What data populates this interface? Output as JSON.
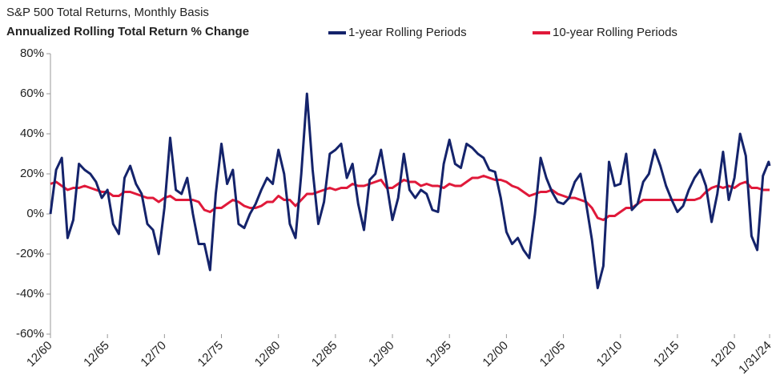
{
  "chart_data": {
    "type": "line",
    "title": "S&P 500 Total Returns, Monthly Basis",
    "subtitle": "Annualized Rolling Total Return % Change",
    "x": [
      "12/60",
      "6/61",
      "12/61",
      "6/62",
      "12/62",
      "6/63",
      "12/63",
      "6/64",
      "12/64",
      "6/65",
      "12/65",
      "6/66",
      "12/66",
      "6/67",
      "12/67",
      "6/68",
      "12/68",
      "6/69",
      "12/69",
      "6/70",
      "12/70",
      "6/71",
      "12/71",
      "6/72",
      "12/72",
      "6/73",
      "12/73",
      "6/74",
      "12/74",
      "6/75",
      "12/75",
      "6/76",
      "12/76",
      "6/77",
      "12/77",
      "6/78",
      "12/78",
      "6/79",
      "12/79",
      "6/80",
      "12/80",
      "6/81",
      "12/81",
      "6/82",
      "12/82",
      "6/83",
      "12/83",
      "6/84",
      "12/84",
      "6/85",
      "12/85",
      "6/86",
      "12/86",
      "6/87",
      "12/87",
      "6/88",
      "12/88",
      "6/89",
      "12/89",
      "6/90",
      "12/90",
      "6/91",
      "12/91",
      "6/92",
      "12/92",
      "6/93",
      "12/93",
      "6/94",
      "12/94",
      "6/95",
      "12/95",
      "6/96",
      "12/96",
      "6/97",
      "12/97",
      "6/98",
      "12/98",
      "6/99",
      "12/99",
      "6/00",
      "12/00",
      "6/01",
      "12/01",
      "6/02",
      "12/02",
      "6/03",
      "12/03",
      "6/04",
      "12/04",
      "6/05",
      "12/05",
      "6/06",
      "12/06",
      "6/07",
      "12/07",
      "6/08",
      "12/08",
      "6/09",
      "12/09",
      "6/10",
      "12/10",
      "6/11",
      "12/11",
      "6/12",
      "12/12",
      "6/13",
      "12/13",
      "6/14",
      "12/14",
      "6/15",
      "12/15",
      "6/16",
      "12/16",
      "6/17",
      "12/17",
      "6/18",
      "12/18",
      "6/19",
      "12/19",
      "6/20",
      "12/20",
      "6/21",
      "12/21",
      "6/22",
      "12/22",
      "6/23",
      "12/23",
      "1/31/24"
    ],
    "series": [
      {
        "name": "1-year Rolling Periods",
        "color": "#14236b",
        "values": [
          0,
          22,
          28,
          -12,
          -3,
          25,
          22,
          20,
          16,
          8,
          12,
          -5,
          -10,
          18,
          24,
          15,
          10,
          -5,
          -8,
          -20,
          3,
          38,
          12,
          10,
          18,
          0,
          -15,
          -15,
          -28,
          10,
          35,
          15,
          22,
          -5,
          -7,
          0,
          5,
          12,
          18,
          15,
          32,
          20,
          -5,
          -12,
          20,
          60,
          22,
          -5,
          6,
          30,
          32,
          35,
          18,
          25,
          5,
          -8,
          17,
          20,
          32,
          15,
          -3,
          8,
          30,
          12,
          8,
          12,
          10,
          2,
          1,
          25,
          37,
          25,
          23,
          35,
          33,
          30,
          28,
          22,
          21,
          8,
          -9,
          -15,
          -12,
          -18,
          -22,
          0,
          28,
          18,
          11,
          6,
          5,
          8,
          16,
          20,
          5,
          -13,
          -37,
          -26,
          26,
          14,
          15,
          30,
          2,
          5,
          16,
          20,
          32,
          24,
          14,
          7,
          1,
          4,
          12,
          18,
          22,
          14,
          -4,
          10,
          31,
          7,
          18,
          40,
          29,
          -11,
          -18,
          19,
          26,
          24
        ]
      },
      {
        "name": "10-year Rolling Periods",
        "color": "#e0193a",
        "values": [
          15,
          16,
          14,
          12,
          13,
          13,
          14,
          13,
          12,
          11,
          11,
          9,
          9,
          11,
          11,
          10,
          9,
          8,
          8,
          6,
          8,
          9,
          7,
          7,
          7,
          7,
          6,
          2,
          1,
          3,
          3,
          5,
          7,
          6,
          4,
          3,
          3,
          4,
          6,
          6,
          9,
          7,
          7,
          4,
          7,
          10,
          10,
          11,
          12,
          13,
          12,
          13,
          13,
          15,
          14,
          14,
          15,
          16,
          17,
          13,
          13,
          15,
          17,
          16,
          16,
          14,
          15,
          14,
          14,
          13,
          15,
          14,
          14,
          16,
          18,
          18,
          19,
          18,
          17,
          17,
          16,
          14,
          13,
          11,
          9,
          10,
          11,
          11,
          12,
          10,
          9,
          8,
          8,
          7,
          6,
          3,
          -2,
          -3,
          -1,
          -1,
          1,
          3,
          3,
          5,
          7,
          7,
          7,
          7,
          7,
          7,
          7,
          7,
          7,
          7,
          8,
          11,
          13,
          14,
          13,
          14,
          13,
          15,
          16,
          13,
          13,
          12,
          12,
          12
        ]
      }
    ],
    "xticks": [
      "12/60",
      "12/65",
      "12/70",
      "12/75",
      "12/80",
      "12/85",
      "12/90",
      "12/95",
      "12/00",
      "12/05",
      "12/10",
      "12/15",
      "12/20",
      "1/31/24"
    ],
    "ylim": [
      -60,
      80
    ],
    "yticks": [
      {
        "value": -60,
        "label": "-60%"
      },
      {
        "value": -40,
        "label": "-40%"
      },
      {
        "value": -20,
        "label": "-20%"
      },
      {
        "value": 0,
        "label": "0%"
      },
      {
        "value": 20,
        "label": "20%"
      },
      {
        "value": 40,
        "label": "40%"
      },
      {
        "value": 60,
        "label": "60%"
      },
      {
        "value": 80,
        "label": "80%"
      }
    ],
    "legend": "top"
  }
}
